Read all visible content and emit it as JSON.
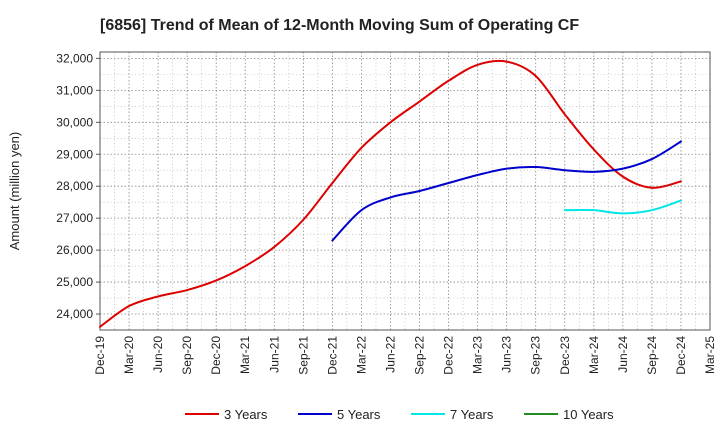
{
  "chart_data": {
    "type": "line",
    "title": "[6856]  Trend of Mean of 12-Month Moving Sum of Operating CF",
    "xlabel": "",
    "ylabel": "Amount (million yen)",
    "ylim": [
      23500,
      32200
    ],
    "yticks": [
      24000,
      25000,
      26000,
      27000,
      28000,
      29000,
      30000,
      31000,
      32000
    ],
    "ytick_labels": [
      "24,000",
      "25,000",
      "26,000",
      "27,000",
      "28,000",
      "29,000",
      "30,000",
      "31,000",
      "32,000"
    ],
    "x": [
      "Dec-19",
      "Mar-20",
      "Jun-20",
      "Sep-20",
      "Dec-20",
      "Mar-21",
      "Jun-21",
      "Sep-21",
      "Dec-21",
      "Mar-22",
      "Jun-22",
      "Sep-22",
      "Dec-22",
      "Mar-23",
      "Jun-23",
      "Sep-23",
      "Dec-23",
      "Mar-24",
      "Jun-24",
      "Sep-24",
      "Dec-24",
      "Mar-25"
    ],
    "grid": true,
    "legend_position": "bottom",
    "series": [
      {
        "name": "3 Years",
        "color": "#dd0000",
        "values": [
          23600,
          24250,
          24550,
          24750,
          25050,
          25500,
          26100,
          26950,
          28100,
          29200,
          30000,
          30650,
          31300,
          31800,
          31900,
          31450,
          30250,
          29150,
          28300,
          27950,
          28150,
          null
        ]
      },
      {
        "name": "5 Years",
        "color": "#0000cc",
        "values": [
          null,
          null,
          null,
          null,
          null,
          null,
          null,
          null,
          26300,
          27250,
          27650,
          27850,
          28100,
          28350,
          28550,
          28600,
          28500,
          28450,
          28550,
          28850,
          29400,
          null
        ]
      },
      {
        "name": "7 Years",
        "color": "#00e5e5",
        "values": [
          null,
          null,
          null,
          null,
          null,
          null,
          null,
          null,
          null,
          null,
          null,
          null,
          null,
          null,
          null,
          null,
          27250,
          27250,
          27150,
          27250,
          27550,
          null
        ]
      },
      {
        "name": "10 Years",
        "color": "#228b22",
        "values": [
          null,
          null,
          null,
          null,
          null,
          null,
          null,
          null,
          null,
          null,
          null,
          null,
          null,
          null,
          null,
          null,
          null,
          null,
          null,
          null,
          null,
          null
        ]
      }
    ]
  }
}
